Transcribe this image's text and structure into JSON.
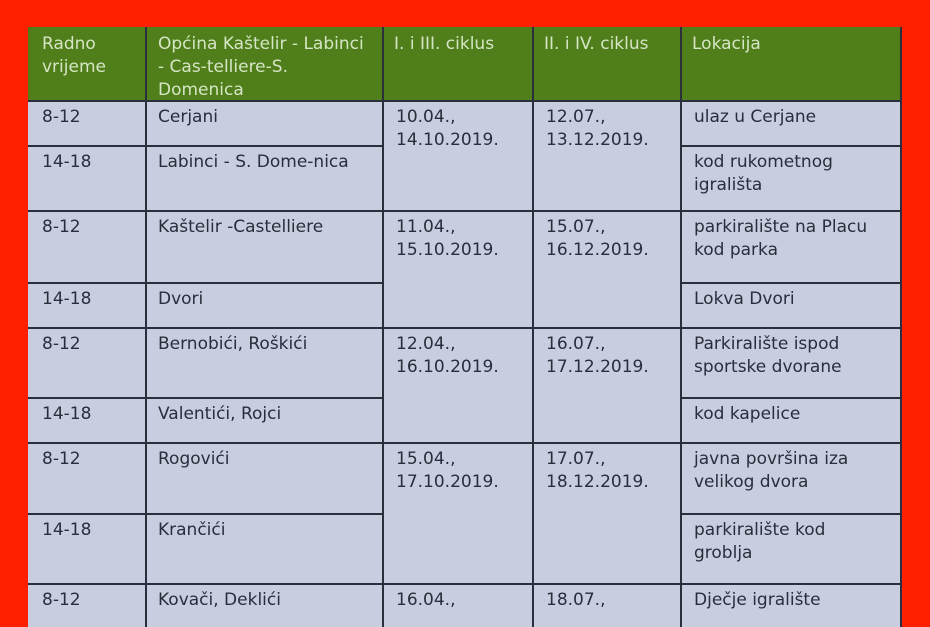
{
  "header": [
    "Radno vrijeme",
    "Općina Kaštelir - Labinci - Cas-telliere-S. Domenica",
    "I. i III. ciklus",
    "II. i IV. ciklus",
    "Lokacija"
  ],
  "rows": [
    {
      "time": "8-12",
      "place": "Cerjani",
      "location": "ulaz u Cerjane"
    },
    {
      "time": "14-18",
      "place": "Labinci - S. Dome-nica",
      "location": "kod rukometnog igrališta"
    },
    {
      "time": "8-12",
      "place": "Kaštelir -Castelliere",
      "location": "parkiralište na Placu kod parka"
    },
    {
      "time": "14-18",
      "place": "Dvori",
      "location": "Lokva Dvori"
    },
    {
      "time": "8-12",
      "place": "Bernobići, Roškići",
      "location": "Parkiralište ispod sportske dvorane"
    },
    {
      "time": "14-18",
      "place": "Valentići, Rojci",
      "location": "kod kapelice"
    },
    {
      "time": "8-12",
      "place": "Rogovići",
      "location": "javna površina iza velikog dvora"
    },
    {
      "time": "14-18",
      "place": "Krančići",
      "location": "parkiralište kod groblja"
    },
    {
      "time": "8-12",
      "place": "Kovači, Deklići",
      "location": "Dječje igralište"
    }
  ],
  "dates": [
    {
      "c13": "10.04., 14.10.2019.",
      "c24": "12.07., 13.12.2019."
    },
    {
      "c13": "11.04., 15.10.2019.",
      "c24": "15.07., 16.12.2019."
    },
    {
      "c13": "12.04., 16.10.2019.",
      "c24": "16.07., 17.12.2019."
    },
    {
      "c13": "15.04., 17.10.2019.",
      "c24": "17.07., 18.12.2019."
    },
    {
      "c13": "16.04.,",
      "c24": "18.07.,"
    }
  ],
  "colors": {
    "frame": "#fe2000",
    "header": "#4f7e1b",
    "body": "#c8cee0"
  }
}
